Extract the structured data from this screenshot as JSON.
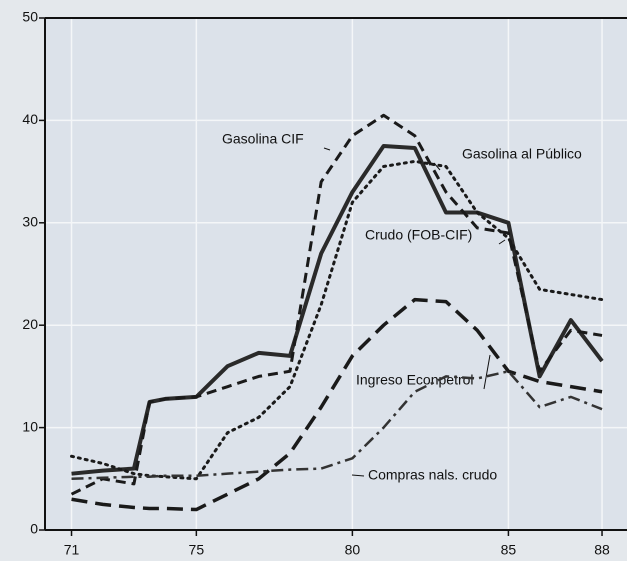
{
  "chart_data": {
    "type": "line",
    "x": [
      71,
      72,
      73,
      73.5,
      74,
      75,
      76,
      77,
      78,
      79,
      80,
      81,
      82,
      83,
      84,
      85,
      86,
      87,
      88
    ],
    "series": [
      {
        "name": "Crudo (FOB-CIF)",
        "color": "#2a2a2a",
        "values": [
          5.5,
          5.8,
          6,
          12.5,
          12.8,
          13,
          16,
          17.3,
          17,
          27,
          33,
          37.5,
          37.3,
          31,
          31,
          30,
          15,
          20.5,
          16.5
        ]
      },
      {
        "name": "Gasolina CIF",
        "color": "#1a1a1a",
        "values": [
          3.5,
          5,
          4.5,
          12.5,
          12.8,
          13,
          14,
          15,
          15.5,
          34,
          38.5,
          40.5,
          38.5,
          33,
          29.5,
          29,
          15.5,
          19.5,
          19
        ]
      },
      {
        "name": "Gasolina al Público",
        "color": "#1a1a1a",
        "values": [
          7.2,
          6.5,
          5.5,
          5.3,
          5.2,
          5,
          9.5,
          11,
          14,
          22,
          32,
          35.5,
          36,
          35.5,
          31,
          28.5,
          23.5,
          23,
          22.5
        ]
      },
      {
        "name": "Ingreso Econpetrol",
        "color": "#1a1a1a",
        "values": [
          3,
          2.5,
          2.2,
          2.1,
          2.1,
          2,
          3.5,
          5,
          7.5,
          12,
          17,
          20,
          22.5,
          22.3,
          19.5,
          15.5,
          14.5,
          14,
          13.5
        ]
      },
      {
        "name": "Compras nals. crudo",
        "color": "#333333",
        "values": [
          5,
          5.1,
          5.2,
          5.2,
          5.3,
          5.3,
          5.5,
          5.7,
          5.9,
          6,
          7,
          10,
          13.5,
          15,
          14.8,
          15.5,
          12,
          13,
          11.8
        ]
      }
    ],
    "xlim": [
      70.15,
      88.8
    ],
    "xticks": [
      71,
      75,
      80,
      85,
      88
    ],
    "ylim": [
      0,
      50
    ],
    "yticks": [
      0,
      10,
      20,
      30,
      40,
      50
    ],
    "grid": true
  }
}
